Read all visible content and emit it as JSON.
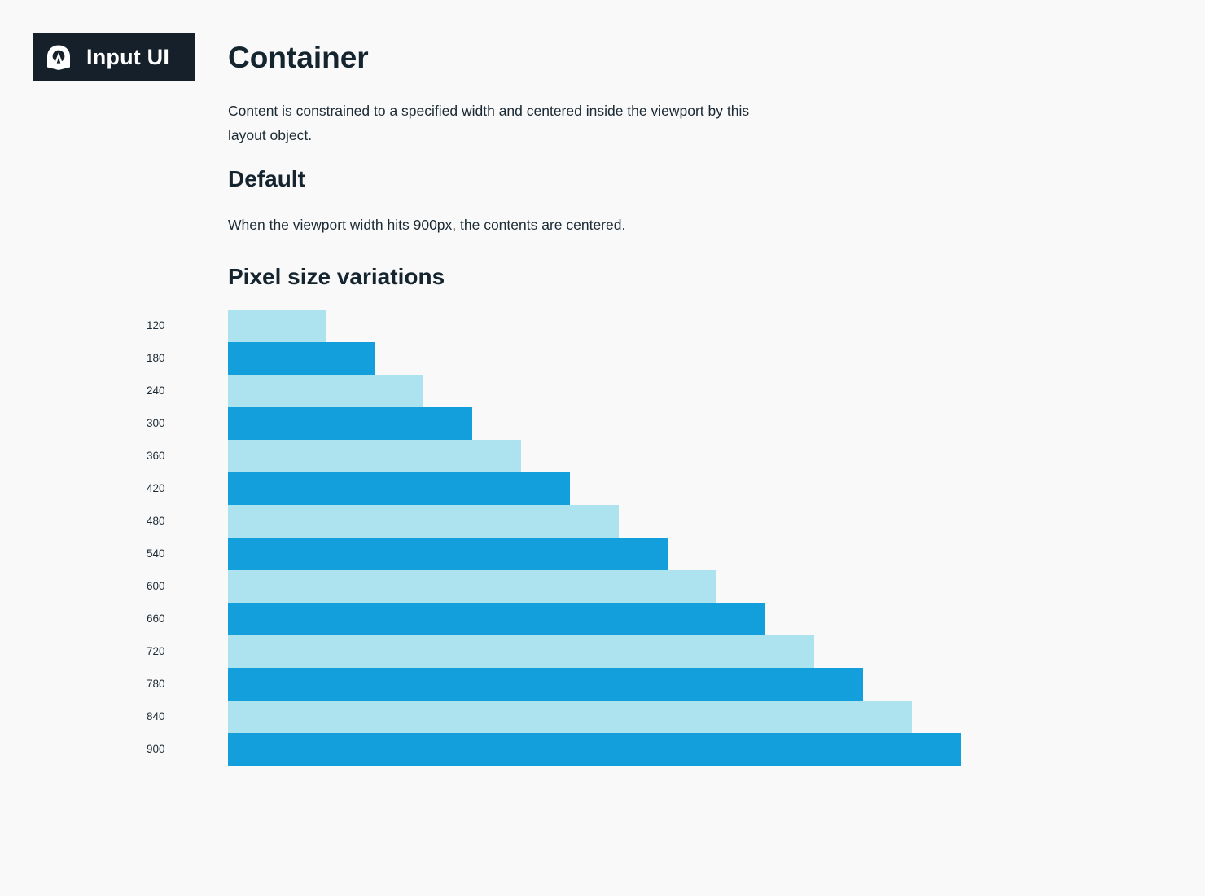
{
  "brand": {
    "logo_text": "Input UI",
    "icon": "input-ui-logo-icon",
    "background_color": "#15202a"
  },
  "page": {
    "title": "Container",
    "intro": "Content is constrained to a specified width and centered inside the viewport by this layout object."
  },
  "sections": {
    "default": {
      "title": "Default",
      "text": "When the viewport width hits 900px, the contents are centered."
    },
    "variations": {
      "title": "Pixel size variations"
    }
  },
  "colors": {
    "light_bar": "#ade3ef",
    "dark_bar": "#129fdc"
  },
  "chart_data": {
    "type": "bar",
    "orientation": "horizontal",
    "categories": [
      "120",
      "180",
      "240",
      "300",
      "360",
      "420",
      "480",
      "540",
      "600",
      "660",
      "720",
      "780",
      "840",
      "900"
    ],
    "values": [
      120,
      180,
      240,
      300,
      360,
      420,
      480,
      540,
      600,
      660,
      720,
      780,
      840,
      900
    ],
    "unit": "px",
    "xlim": [
      0,
      900
    ],
    "bar_colors_alternating": [
      "#ade3ef",
      "#129fdc"
    ]
  }
}
